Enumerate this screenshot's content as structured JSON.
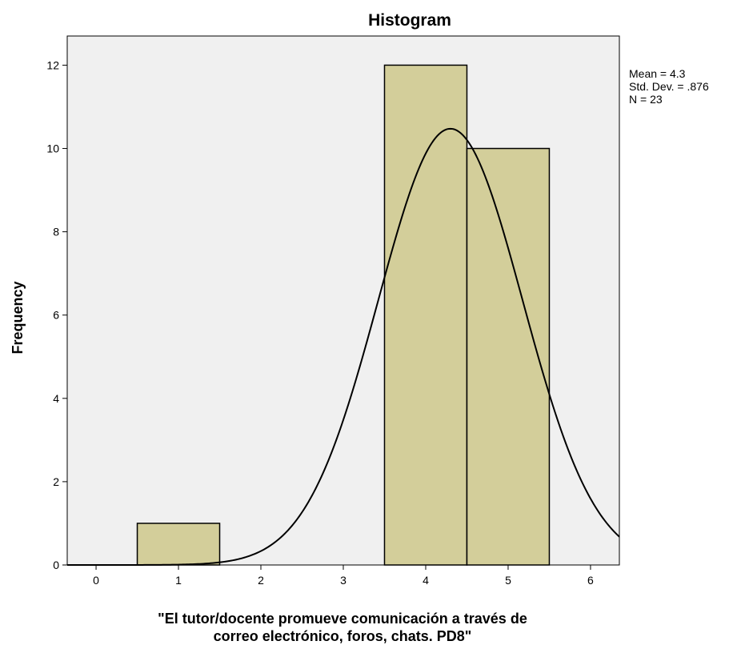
{
  "chart_data": {
    "type": "bar",
    "title": "Histogram",
    "xlabel_lines": [
      "\"El tutor/docente promueve comunicación a través de",
      "correo electrónico, foros, chats. PD8\""
    ],
    "ylabel": "Frequency",
    "bins": [
      {
        "x_start": 0.5,
        "x_end": 1.5,
        "value": 1
      },
      {
        "x_start": 3.5,
        "x_end": 4.5,
        "value": 12
      },
      {
        "x_start": 4.5,
        "x_end": 5.5,
        "value": 10
      }
    ],
    "xlim": [
      -0.35,
      6.35
    ],
    "ylim": [
      0,
      12.7
    ],
    "x_ticks": [
      0,
      1,
      2,
      3,
      4,
      5,
      6
    ],
    "y_ticks": [
      0,
      2,
      4,
      6,
      8,
      10,
      12
    ],
    "normal_curve": {
      "mean": 4.3,
      "std_dev": 0.876,
      "n": 23,
      "bin_width": 1
    },
    "stats": [
      "Mean = 4.3",
      "Std. Dev. = .876",
      "N = 23"
    ],
    "grid": false,
    "colors": {
      "plot_background": "#f0f0f0",
      "bar_fill": "#d3ce9a",
      "bar_stroke": "#000000",
      "curve": "#000000"
    }
  }
}
